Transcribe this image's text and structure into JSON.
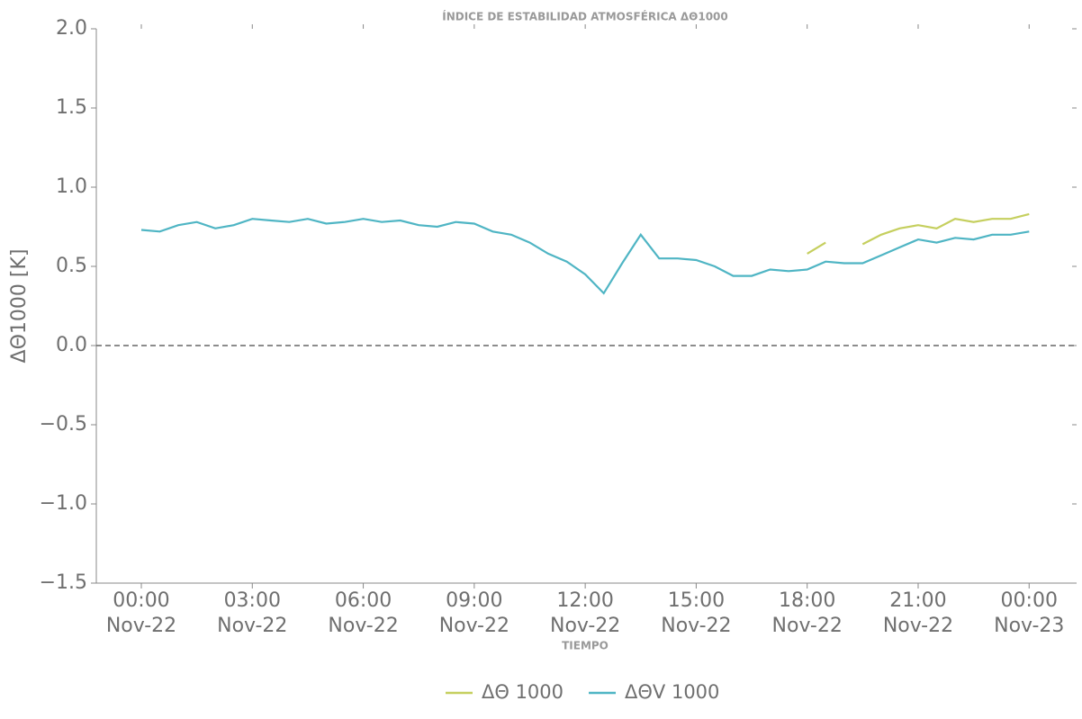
{
  "chart_data": {
    "type": "line",
    "title": "ÍNDICE DE ESTABILIDAD ATMOSFÉRICA ΔΘ1000",
    "xlabel": "TIEMPO",
    "ylabel": "ΔΘ1000 [K]",
    "x": [
      "Nov-22 00:00",
      "Nov-22 00:30",
      "Nov-22 01:00",
      "Nov-22 01:30",
      "Nov-22 02:00",
      "Nov-22 02:30",
      "Nov-22 03:00",
      "Nov-22 03:30",
      "Nov-22 04:00",
      "Nov-22 04:30",
      "Nov-22 05:00",
      "Nov-22 05:30",
      "Nov-22 06:00",
      "Nov-22 06:30",
      "Nov-22 07:00",
      "Nov-22 07:30",
      "Nov-22 08:00",
      "Nov-22 08:30",
      "Nov-22 09:00",
      "Nov-22 09:30",
      "Nov-22 10:00",
      "Nov-22 10:30",
      "Nov-22 11:00",
      "Nov-22 11:30",
      "Nov-22 12:00",
      "Nov-22 12:30",
      "Nov-22 13:00",
      "Nov-22 13:30",
      "Nov-22 14:00",
      "Nov-22 14:30",
      "Nov-22 15:00",
      "Nov-22 15:30",
      "Nov-22 16:00",
      "Nov-22 16:30",
      "Nov-22 17:00",
      "Nov-22 17:30",
      "Nov-22 18:00",
      "Nov-22 18:30",
      "Nov-22 19:00",
      "Nov-22 19:30",
      "Nov-22 20:00",
      "Nov-22 20:30",
      "Nov-22 21:00",
      "Nov-22 21:30",
      "Nov-22 22:00",
      "Nov-22 22:30",
      "Nov-22 23:00",
      "Nov-22 23:30",
      "Nov-23 00:00"
    ],
    "series": [
      {
        "name": "ΔΘ 1000",
        "color": "#c5cf5e",
        "values": [
          null,
          null,
          null,
          null,
          null,
          null,
          null,
          null,
          null,
          null,
          null,
          null,
          null,
          null,
          null,
          null,
          null,
          null,
          null,
          null,
          null,
          null,
          null,
          null,
          null,
          null,
          null,
          null,
          null,
          null,
          null,
          null,
          null,
          null,
          null,
          null,
          0.58,
          0.65,
          null,
          0.64,
          0.7,
          0.74,
          0.76,
          0.74,
          0.8,
          0.78,
          0.8,
          0.8,
          0.83
        ]
      },
      {
        "name": "ΔΘV 1000",
        "color": "#4fb5c4",
        "values": [
          0.73,
          0.72,
          0.76,
          0.78,
          0.74,
          0.76,
          0.8,
          0.79,
          0.78,
          0.8,
          0.77,
          0.78,
          0.8,
          0.78,
          0.79,
          0.76,
          0.75,
          0.78,
          0.77,
          0.72,
          0.7,
          0.65,
          0.58,
          0.53,
          0.45,
          0.33,
          0.52,
          0.7,
          0.55,
          0.55,
          0.54,
          0.5,
          0.44,
          0.44,
          0.48,
          0.47,
          0.48,
          0.53,
          0.52,
          0.52,
          0.57,
          0.62,
          0.67,
          0.65,
          0.68,
          0.67,
          0.7,
          0.7,
          0.72
        ]
      }
    ],
    "xlim": [
      "Nov-21 22:47",
      "Nov-23 01:17"
    ],
    "xticks": [
      {
        "value": "Nov-22 00:00",
        "label": "00:00 Nov-22"
      },
      {
        "value": "Nov-22 03:00",
        "label": "03:00 Nov-22"
      },
      {
        "value": "Nov-22 06:00",
        "label": "06:00 Nov-22"
      },
      {
        "value": "Nov-22 09:00",
        "label": "09:00 Nov-22"
      },
      {
        "value": "Nov-22 12:00",
        "label": "12:00 Nov-22"
      },
      {
        "value": "Nov-22 15:00",
        "label": "15:00 Nov-22"
      },
      {
        "value": "Nov-22 18:00",
        "label": "18:00 Nov-22"
      },
      {
        "value": "Nov-22 21:00",
        "label": "21:00 Nov-22"
      },
      {
        "value": "Nov-23 00:00",
        "label": "00:00 Nov-23"
      }
    ],
    "ylim": [
      -1.5,
      2.0
    ],
    "yticks": [
      {
        "value": -1.5,
        "label": "−1.5"
      },
      {
        "value": -1,
        "label": "−1.0"
      },
      {
        "value": -0.5,
        "label": "−0.5"
      },
      {
        "value": 0,
        "label": "0.0"
      },
      0.5,
      {
        "value": 1,
        "label": "1.0"
      },
      1.5,
      {
        "value": 2,
        "label": "2.0"
      }
    ],
    "hline": 0,
    "legend": "bottom"
  }
}
